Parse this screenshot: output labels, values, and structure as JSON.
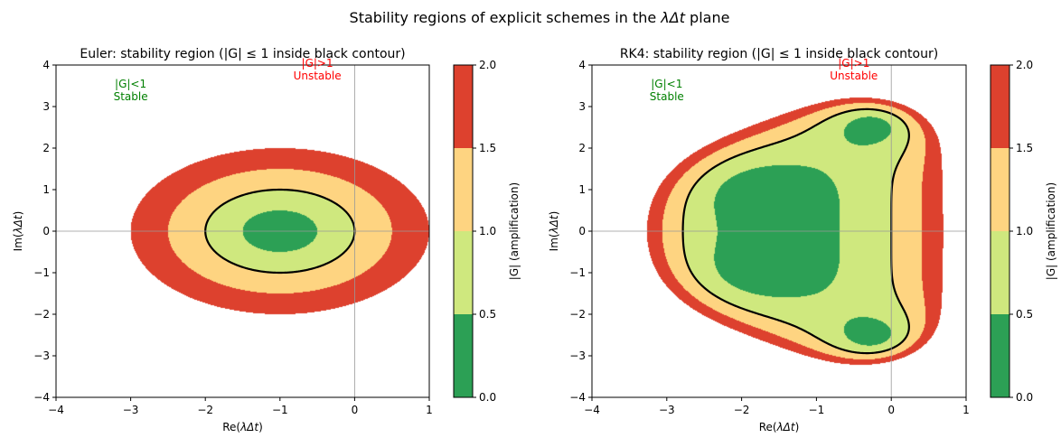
{
  "figure": {
    "suptitle_prefix": "Stability regions of explicit schemes in the ",
    "suptitle_math": "λΔt",
    "suptitle_suffix": " plane"
  },
  "colors": {
    "level_0_05": "#2ca055",
    "level_05_1": "#cfe87e",
    "level_1_15": "#fed481",
    "level_15_2": "#dd412e",
    "contour": "#000000",
    "stable_text": "#008000",
    "unstable_text": "#ff0000",
    "axis_ref_line": "#999999"
  },
  "chart_data": [
    {
      "type": "heatmap",
      "title": "Euler: stability region (|G| ≤ 1 inside black contour)",
      "scheme": "euler",
      "xlabel_pre": "Re(",
      "xlabel_math": "λΔt",
      "xlabel_post": ")",
      "ylabel_pre": "Im(",
      "ylabel_math": "λΔt",
      "ylabel_post": ")",
      "xlim": [
        -4,
        1
      ],
      "ylim": [
        -4,
        4
      ],
      "xticks": [
        "−4",
        "−3",
        "−2",
        "−1",
        "0",
        "1"
      ],
      "xtick_values": [
        -4,
        -3,
        -2,
        -1,
        0,
        1
      ],
      "yticks": [
        "−4",
        "−3",
        "−2",
        "−1",
        "0",
        "1",
        "2",
        "3",
        "4"
      ],
      "ytick_values": [
        -4,
        -3,
        -2,
        -1,
        0,
        1,
        2,
        3,
        4
      ],
      "levels": [
        0,
        0.5,
        1,
        1.5,
        2
      ],
      "contour_level": 1,
      "reference_lines": {
        "x": 0,
        "y": 0
      },
      "annotations": [
        {
          "line1": "|G|<1",
          "line2": "Stable",
          "x": -3.0,
          "y": 3.3,
          "kind": "stable"
        },
        {
          "line1": "|G|>1",
          "line2": "Unstable",
          "x": -0.5,
          "y": 3.8,
          "kind": "unstable"
        }
      ],
      "colorbar": {
        "label": "|G| (amplification)",
        "ticks": [
          "0.0",
          "0.5",
          "1.0",
          "1.5",
          "2.0"
        ],
        "tick_values": [
          0,
          0.5,
          1,
          1.5,
          2
        ]
      }
    },
    {
      "type": "heatmap",
      "title": "RK4: stability region (|G| ≤ 1 inside black contour)",
      "scheme": "rk4",
      "xlabel_pre": "Re(",
      "xlabel_math": "λΔt",
      "xlabel_post": ")",
      "ylabel_pre": "Im(",
      "ylabel_math": "λΔt",
      "ylabel_post": ")",
      "xlim": [
        -4,
        1
      ],
      "ylim": [
        -4,
        4
      ],
      "xticks": [
        "−4",
        "−3",
        "−2",
        "−1",
        "0",
        "1"
      ],
      "xtick_values": [
        -4,
        -3,
        -2,
        -1,
        0,
        1
      ],
      "yticks": [
        "−4",
        "−3",
        "−2",
        "−1",
        "0",
        "1",
        "2",
        "3",
        "4"
      ],
      "ytick_values": [
        -4,
        -3,
        -2,
        -1,
        0,
        1,
        2,
        3,
        4
      ],
      "levels": [
        0,
        0.5,
        1,
        1.5,
        2
      ],
      "contour_level": 1,
      "reference_lines": {
        "x": 0,
        "y": 0
      },
      "annotations": [
        {
          "line1": "|G|<1",
          "line2": "Stable",
          "x": -3.0,
          "y": 3.3,
          "kind": "stable"
        },
        {
          "line1": "|G|>1",
          "line2": "Unstable",
          "x": -0.5,
          "y": 3.8,
          "kind": "unstable"
        }
      ],
      "colorbar": {
        "label": "|G| (amplification)",
        "ticks": [
          "0.0",
          "0.5",
          "1.0",
          "1.5",
          "2.0"
        ],
        "tick_values": [
          0,
          0.5,
          1,
          1.5,
          2
        ]
      }
    }
  ]
}
